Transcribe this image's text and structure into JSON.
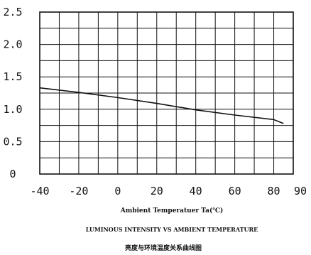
{
  "chart_data": {
    "type": "line",
    "xlabel": "Ambient Temperatuer Ta(℃)",
    "title": "LUMINOUS INTENSITY VS AMBIENT TEMPERATURE",
    "subtitle": "亮度与环境温度关系曲线图",
    "xlim": [
      -40,
      90
    ],
    "ylim": [
      0,
      2.5
    ],
    "x_ticks": [
      "-40",
      "-20",
      "0",
      "20",
      "40",
      "60",
      "80",
      "90"
    ],
    "y_ticks": [
      "0",
      "0.5",
      "1.0",
      "1.5",
      "2.0",
      "2.5"
    ],
    "grid": true,
    "series": [
      {
        "x": [
          -40,
          -20,
          0,
          20,
          40,
          60,
          80,
          85
        ],
        "values": [
          1.33,
          1.26,
          1.18,
          1.09,
          0.99,
          0.91,
          0.84,
          0.78
        ]
      }
    ],
    "colors": {
      "line": "#111111",
      "grid": "#111111"
    }
  }
}
